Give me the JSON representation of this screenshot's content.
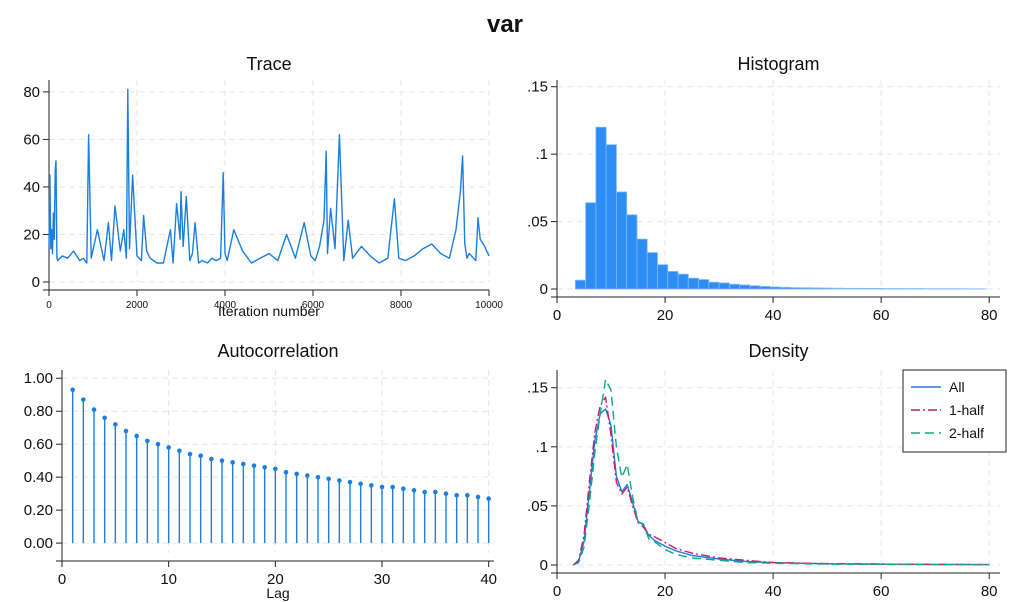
{
  "title": "var",
  "colors": {
    "all": "#1a7fe0",
    "half1": "#cc1c68",
    "half2": "#12a784",
    "bar_fill": "#2e8df5",
    "bar_edge": "#7db8fa"
  },
  "chart_data": [
    {
      "id": "trace",
      "type": "line",
      "title": "Trace",
      "xlabel": "Iteration number",
      "xlim": [
        0,
        10000
      ],
      "ylim": [
        0,
        85
      ],
      "xticks": [
        0,
        2000,
        4000,
        6000,
        8000,
        10000
      ],
      "xtick_labels": [
        "0",
        "2000",
        "4000",
        "6000",
        "8000",
        "10000"
      ],
      "yticks": [
        0,
        20,
        40,
        60,
        80
      ],
      "ytick_labels": [
        "0",
        "20",
        "40",
        "60",
        "80"
      ],
      "series": [
        {
          "x": [
            0,
            20,
            40,
            60,
            80,
            100,
            120,
            140,
            160,
            180,
            200,
            300,
            420,
            560,
            700,
            780,
            860,
            900,
            960,
            1100,
            1250,
            1350,
            1420,
            1500,
            1620,
            1700,
            1760,
            1790,
            1830,
            1900,
            2000,
            2100,
            2150,
            2220,
            2300,
            2450,
            2600,
            2760,
            2820,
            2900,
            2980,
            3000,
            3050,
            3120,
            3200,
            3260,
            3320,
            3400,
            3480,
            3600,
            3700,
            3800,
            3900,
            3960,
            4000,
            4050,
            4200,
            4400,
            4600,
            4800,
            5000,
            5200,
            5400,
            5600,
            5800,
            5950,
            6050,
            6150,
            6250,
            6300,
            6330,
            6400,
            6500,
            6600,
            6700,
            6800,
            6900,
            7100,
            7300,
            7500,
            7700,
            7850,
            7950,
            8100,
            8300,
            8500,
            8700,
            8900,
            9100,
            9250,
            9350,
            9400,
            9450,
            9500,
            9550,
            9650,
            9700,
            9750,
            9800,
            9900,
            10000
          ],
          "y": [
            15,
            45,
            14,
            22,
            12,
            29,
            18,
            47,
            51,
            10,
            9,
            11,
            10,
            13,
            9,
            10,
            8,
            62,
            10,
            22,
            9,
            25,
            9,
            32,
            13,
            22,
            10,
            81,
            14,
            45,
            11,
            9,
            28,
            13,
            10,
            8,
            8,
            22,
            8,
            33,
            18,
            38,
            15,
            36,
            9,
            12,
            25,
            8,
            9,
            8,
            10,
            9,
            10,
            46,
            12,
            9,
            22,
            13,
            8,
            10,
            12,
            9,
            20,
            10,
            25,
            11,
            9,
            15,
            26,
            55,
            12,
            31,
            14,
            62,
            9,
            26,
            10,
            15,
            11,
            8,
            10,
            35,
            10,
            9,
            11,
            14,
            16,
            12,
            10,
            22,
            38,
            53,
            16,
            10,
            12,
            10,
            9,
            27,
            18,
            15,
            11
          ]
        }
      ]
    },
    {
      "id": "histogram",
      "type": "bar",
      "title": "Histogram",
      "xlim": [
        0,
        82
      ],
      "ylim": [
        0,
        0.155
      ],
      "xticks": [
        0,
        20,
        40,
        60,
        80
      ],
      "xtick_labels": [
        "0",
        "20",
        "40",
        "60",
        "80"
      ],
      "yticks": [
        0,
        0.05,
        0.1,
        0.15
      ],
      "ytick_labels": [
        "0",
        ".05",
        ".1",
        ".15"
      ],
      "bins_start": 3.4,
      "bin_width": 1.9,
      "values": [
        0.0065,
        0.064,
        0.12,
        0.107,
        0.072,
        0.055,
        0.037,
        0.027,
        0.018,
        0.013,
        0.011,
        0.008,
        0.007,
        0.005,
        0.0045,
        0.0035,
        0.003,
        0.0024,
        0.0019,
        0.0015,
        0.0012,
        0.001,
        0.0009,
        0.0008,
        0.0007,
        0.0006,
        0.0005,
        0.0005,
        0.0004,
        0.0004,
        0.0003,
        0.0003,
        0.0003,
        0.0003,
        0.0002,
        0.0002,
        0.0002,
        0.0002,
        0.0001,
        0.0001
      ]
    },
    {
      "id": "autocorrelation",
      "type": "bar",
      "title": "Autocorrelation",
      "xlabel": "Lag",
      "xlim": [
        0,
        40.5
      ],
      "ylim": [
        -0.06,
        1.05
      ],
      "xticks": [
        0,
        10,
        20,
        30,
        40
      ],
      "xtick_labels": [
        "0",
        "10",
        "20",
        "30",
        "40"
      ],
      "yticks": [
        0,
        0.2,
        0.4,
        0.6,
        0.8,
        1.0
      ],
      "ytick_labels": [
        "0.00",
        "0.20",
        "0.40",
        "0.60",
        "0.80",
        "1.00"
      ],
      "lags": [
        1,
        2,
        3,
        4,
        5,
        6,
        7,
        8,
        9,
        10,
        11,
        12,
        13,
        14,
        15,
        16,
        17,
        18,
        19,
        20,
        21,
        22,
        23,
        24,
        25,
        26,
        27,
        28,
        29,
        30,
        31,
        32,
        33,
        34,
        35,
        36,
        37,
        38,
        39,
        40
      ],
      "values": [
        0.93,
        0.87,
        0.81,
        0.76,
        0.72,
        0.68,
        0.65,
        0.62,
        0.6,
        0.58,
        0.56,
        0.54,
        0.53,
        0.51,
        0.5,
        0.49,
        0.48,
        0.47,
        0.46,
        0.45,
        0.43,
        0.42,
        0.41,
        0.4,
        0.39,
        0.38,
        0.37,
        0.36,
        0.35,
        0.34,
        0.34,
        0.33,
        0.32,
        0.31,
        0.31,
        0.3,
        0.29,
        0.29,
        0.28,
        0.27
      ]
    },
    {
      "id": "density",
      "type": "line",
      "title": "Density",
      "xlim": [
        0,
        82
      ],
      "ylim": [
        0,
        0.165
      ],
      "xticks": [
        0,
        20,
        40,
        60,
        80
      ],
      "xtick_labels": [
        "0",
        "20",
        "40",
        "60",
        "80"
      ],
      "yticks": [
        0,
        0.05,
        0.1,
        0.15
      ],
      "ytick_labels": [
        "0",
        ".05",
        ".1",
        ".15"
      ],
      "legend": "top-right",
      "series": [
        {
          "name": "All",
          "x": [
            3,
            4,
            5,
            6,
            7,
            8,
            9,
            10,
            11,
            12,
            13,
            14,
            15,
            16,
            17,
            18,
            20,
            22,
            25,
            30,
            35,
            40,
            50,
            60,
            70,
            80
          ],
          "y": [
            0,
            0.003,
            0.02,
            0.062,
            0.105,
            0.128,
            0.132,
            0.118,
            0.075,
            0.062,
            0.068,
            0.053,
            0.037,
            0.034,
            0.025,
            0.021,
            0.016,
            0.012,
            0.008,
            0.005,
            0.003,
            0.002,
            0.001,
            0.0008,
            0.0005,
            0.0003
          ]
        },
        {
          "name": "1-half",
          "x": [
            3,
            4,
            5,
            6,
            7,
            8,
            9,
            10,
            11,
            12,
            13,
            14,
            15,
            16,
            17,
            18,
            20,
            22,
            25,
            30,
            35,
            40,
            50,
            60,
            70,
            80
          ],
          "y": [
            0,
            0.004,
            0.025,
            0.07,
            0.112,
            0.135,
            0.142,
            0.11,
            0.07,
            0.06,
            0.066,
            0.05,
            0.036,
            0.032,
            0.026,
            0.024,
            0.019,
            0.014,
            0.01,
            0.006,
            0.004,
            0.002,
            0.0012,
            0.0008,
            0.0005,
            0.0003
          ]
        },
        {
          "name": "2-half",
          "x": [
            3,
            4,
            5,
            6,
            7,
            8,
            9,
            10,
            11,
            12,
            13,
            14,
            15,
            16,
            17,
            18,
            20,
            22,
            25,
            30,
            35,
            40,
            50,
            60,
            70,
            80
          ],
          "y": [
            0,
            0.002,
            0.015,
            0.052,
            0.095,
            0.128,
            0.157,
            0.148,
            0.1,
            0.074,
            0.085,
            0.058,
            0.036,
            0.035,
            0.022,
            0.02,
            0.013,
            0.009,
            0.006,
            0.004,
            0.002,
            0.0015,
            0.0008,
            0.0005,
            0.0003,
            0.0002
          ]
        }
      ]
    }
  ]
}
